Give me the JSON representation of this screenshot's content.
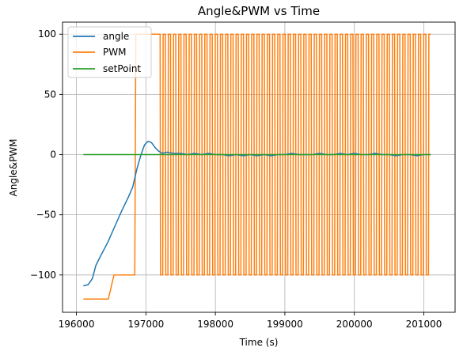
{
  "chart_data": {
    "type": "line",
    "title": "Angle&PWM vs Time",
    "xlabel": "Time (s)",
    "ylabel": "Angle&PWM",
    "xlim": [
      195800,
      201450
    ],
    "ylim": [
      -131,
      110
    ],
    "grid": true,
    "legend_position": "top-left",
    "x_ticks": [
      196000,
      197000,
      198000,
      199000,
      200000,
      201000
    ],
    "x_tick_labels": [
      "196000",
      "197000",
      "198000",
      "199000",
      "200000",
      "201000"
    ],
    "y_ticks": [
      -100,
      -50,
      0,
      50,
      100
    ],
    "y_tick_labels": [
      "−100",
      "−50",
      "0",
      "50",
      "100"
    ],
    "series": [
      {
        "name": "angle",
        "color": "#1f77b4",
        "x": [
          196100,
          196170,
          196230,
          196280,
          196350,
          196450,
          196550,
          196650,
          196750,
          196810,
          196870,
          196930,
          196980,
          197030,
          197080,
          197130,
          197180,
          197240,
          197300,
          197400,
          197500,
          197600,
          197700,
          197800,
          197900,
          198000,
          198100,
          198200,
          198300,
          198400,
          198500,
          198600,
          198700,
          198800,
          198900,
          199000,
          199100,
          199200,
          199300,
          199400,
          199500,
          199600,
          199700,
          199800,
          199900,
          200000,
          200100,
          200200,
          200300,
          200400,
          200500,
          200600,
          200700,
          200800,
          200900,
          201000,
          201100
        ],
        "y": [
          -109,
          -108,
          -103,
          -92,
          -84,
          -73,
          -60,
          -47,
          -35,
          -27,
          -12,
          0,
          8,
          11,
          10,
          6,
          3,
          1,
          2,
          1,
          1,
          0,
          1,
          0,
          1,
          0,
          0,
          -1,
          0,
          -1,
          0,
          -1,
          0,
          -1,
          0,
          0,
          1,
          0,
          0,
          0,
          1,
          0,
          0,
          1,
          0,
          1,
          0,
          0,
          1,
          0,
          0,
          -1,
          0,
          0,
          -1,
          0,
          0
        ]
      },
      {
        "name": "PWM",
        "color": "#ff7f0e",
        "pattern": "oscillating square wave between -100 and 100",
        "segments": [
          [
            196100,
            -120
          ],
          [
            196460,
            -120
          ],
          [
            196540,
            -100
          ],
          [
            196840,
            -100
          ],
          [
            196855,
            100
          ],
          [
            197170,
            100
          ],
          [
            201100,
            100
          ]
        ],
        "oscillation": {
          "start": 197170,
          "end": 201100,
          "low": -100,
          "high": 100,
          "period": 75
        }
      },
      {
        "name": "setPoint",
        "color": "#2ca02c",
        "x": [
          196100,
          201100
        ],
        "y": [
          0,
          0
        ]
      }
    ]
  }
}
